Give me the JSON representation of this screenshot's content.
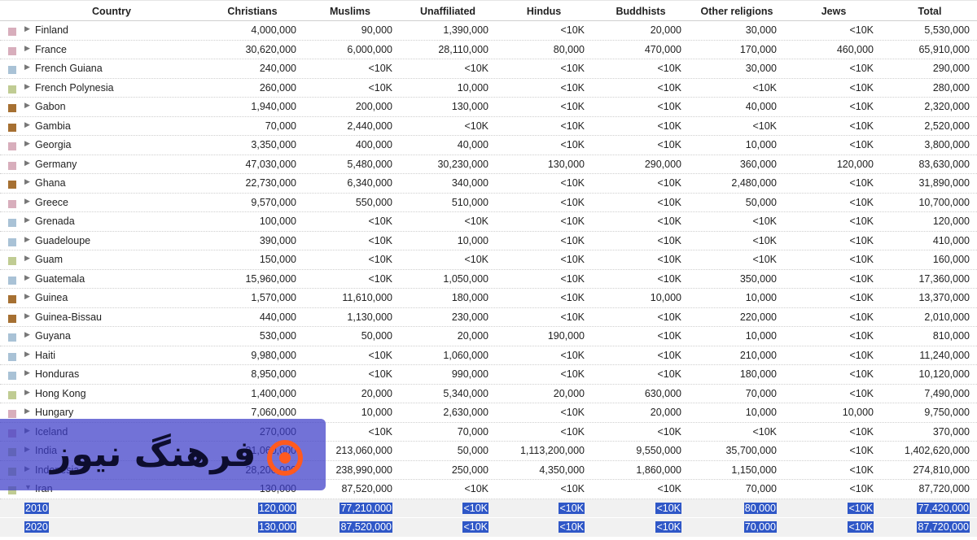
{
  "colors": {
    "europe": "#d8aebc",
    "americas": "#a9c2d6",
    "asia_pacific": "#c0cc93",
    "africa": "#a67032",
    "highlight": "#2f57c7"
  },
  "headers": [
    "Country",
    "Christians",
    "Muslims",
    "Unaffiliated",
    "Hindus",
    "Buddhists",
    "Other religions",
    "Jews",
    "Total"
  ],
  "rows": [
    {
      "country": "Finland",
      "region": "europe",
      "values": [
        "4,000,000",
        "90,000",
        "1,390,000",
        "<10K",
        "20,000",
        "30,000",
        "<10K",
        "5,530,000"
      ]
    },
    {
      "country": "France",
      "region": "europe",
      "values": [
        "30,620,000",
        "6,000,000",
        "28,110,000",
        "80,000",
        "470,000",
        "170,000",
        "460,000",
        "65,910,000"
      ]
    },
    {
      "country": "French Guiana",
      "region": "americas",
      "values": [
        "240,000",
        "<10K",
        "<10K",
        "<10K",
        "<10K",
        "30,000",
        "<10K",
        "290,000"
      ]
    },
    {
      "country": "French Polynesia",
      "region": "asia_pacific",
      "values": [
        "260,000",
        "<10K",
        "10,000",
        "<10K",
        "<10K",
        "<10K",
        "<10K",
        "280,000"
      ]
    },
    {
      "country": "Gabon",
      "region": "africa",
      "values": [
        "1,940,000",
        "200,000",
        "130,000",
        "<10K",
        "<10K",
        "40,000",
        "<10K",
        "2,320,000"
      ]
    },
    {
      "country": "Gambia",
      "region": "africa",
      "values": [
        "70,000",
        "2,440,000",
        "<10K",
        "<10K",
        "<10K",
        "<10K",
        "<10K",
        "2,520,000"
      ]
    },
    {
      "country": "Georgia",
      "region": "europe",
      "values": [
        "3,350,000",
        "400,000",
        "40,000",
        "<10K",
        "<10K",
        "10,000",
        "<10K",
        "3,800,000"
      ]
    },
    {
      "country": "Germany",
      "region": "europe",
      "values": [
        "47,030,000",
        "5,480,000",
        "30,230,000",
        "130,000",
        "290,000",
        "360,000",
        "120,000",
        "83,630,000"
      ]
    },
    {
      "country": "Ghana",
      "region": "africa",
      "values": [
        "22,730,000",
        "6,340,000",
        "340,000",
        "<10K",
        "<10K",
        "2,480,000",
        "<10K",
        "31,890,000"
      ]
    },
    {
      "country": "Greece",
      "region": "europe",
      "values": [
        "9,570,000",
        "550,000",
        "510,000",
        "<10K",
        "<10K",
        "50,000",
        "<10K",
        "10,700,000"
      ]
    },
    {
      "country": "Grenada",
      "region": "americas",
      "values": [
        "100,000",
        "<10K",
        "<10K",
        "<10K",
        "<10K",
        "<10K",
        "<10K",
        "120,000"
      ]
    },
    {
      "country": "Guadeloupe",
      "region": "americas",
      "values": [
        "390,000",
        "<10K",
        "10,000",
        "<10K",
        "<10K",
        "<10K",
        "<10K",
        "410,000"
      ]
    },
    {
      "country": "Guam",
      "region": "asia_pacific",
      "values": [
        "150,000",
        "<10K",
        "<10K",
        "<10K",
        "<10K",
        "<10K",
        "<10K",
        "160,000"
      ]
    },
    {
      "country": "Guatemala",
      "region": "americas",
      "values": [
        "15,960,000",
        "<10K",
        "1,050,000",
        "<10K",
        "<10K",
        "350,000",
        "<10K",
        "17,360,000"
      ]
    },
    {
      "country": "Guinea",
      "region": "africa",
      "values": [
        "1,570,000",
        "11,610,000",
        "180,000",
        "<10K",
        "10,000",
        "10,000",
        "<10K",
        "13,370,000"
      ]
    },
    {
      "country": "Guinea-Bissau",
      "region": "africa",
      "values": [
        "440,000",
        "1,130,000",
        "230,000",
        "<10K",
        "<10K",
        "220,000",
        "<10K",
        "2,010,000"
      ]
    },
    {
      "country": "Guyana",
      "region": "americas",
      "values": [
        "530,000",
        "50,000",
        "20,000",
        "190,000",
        "<10K",
        "10,000",
        "<10K",
        "810,000"
      ]
    },
    {
      "country": "Haiti",
      "region": "americas",
      "values": [
        "9,980,000",
        "<10K",
        "1,060,000",
        "<10K",
        "<10K",
        "210,000",
        "<10K",
        "11,240,000"
      ]
    },
    {
      "country": "Honduras",
      "region": "americas",
      "values": [
        "8,950,000",
        "<10K",
        "990,000",
        "<10K",
        "<10K",
        "180,000",
        "<10K",
        "10,120,000"
      ]
    },
    {
      "country": "Hong Kong",
      "region": "asia_pacific",
      "values": [
        "1,400,000",
        "20,000",
        "5,340,000",
        "20,000",
        "630,000",
        "70,000",
        "<10K",
        "7,490,000"
      ]
    },
    {
      "country": "Hungary",
      "region": "europe",
      "values": [
        "7,060,000",
        "10,000",
        "2,630,000",
        "<10K",
        "20,000",
        "10,000",
        "10,000",
        "9,750,000"
      ]
    },
    {
      "country": "Iceland",
      "region": "europe",
      "values": [
        "270,000",
        "<10K",
        "70,000",
        "<10K",
        "<10K",
        "<10K",
        "<10K",
        "370,000"
      ]
    },
    {
      "country": "India",
      "region": "asia_pacific",
      "values": [
        "31,060,000",
        "213,060,000",
        "50,000",
        "1,113,200,000",
        "9,550,000",
        "35,700,000",
        "<10K",
        "1,402,620,000"
      ]
    },
    {
      "country": "Indonesia",
      "region": "asia_pacific",
      "values": [
        "28,200,000",
        "238,990,000",
        "250,000",
        "4,350,000",
        "1,860,000",
        "1,150,000",
        "<10K",
        "274,810,000"
      ]
    },
    {
      "country": "Iran",
      "region": "asia_pacific",
      "expanded": true,
      "values": [
        "130,000",
        "87,520,000",
        "<10K",
        "<10K",
        "<10K",
        "70,000",
        "<10K",
        "87,720,000"
      ]
    }
  ],
  "subrows": [
    {
      "year": "2010",
      "values": [
        "120,000",
        "77,210,000",
        "<10K",
        "<10K",
        "<10K",
        "80,000",
        "<10K",
        "77,420,000"
      ]
    },
    {
      "year": "2020",
      "values": [
        "130,000",
        "87,520,000",
        "<10K",
        "<10K",
        "<10K",
        "70,000",
        "<10K",
        "87,720,000"
      ]
    }
  ],
  "icons": {
    "collapsed": "▶",
    "expanded": "▼"
  },
  "watermark": {
    "text": "فرهنگ نیوز"
  }
}
